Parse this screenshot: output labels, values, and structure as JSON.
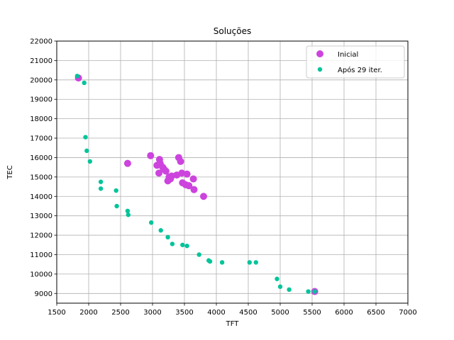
{
  "chart_data": {
    "type": "scatter",
    "title": "Soluções",
    "xlabel": "TFT",
    "ylabel": "TEC",
    "xlim": [
      1500,
      7000
    ],
    "ylim": [
      8500,
      22000
    ],
    "xticks": [
      1500,
      2000,
      2500,
      3000,
      3500,
      4000,
      4500,
      5000,
      5500,
      6000,
      6500,
      7000
    ],
    "yticks": [
      9000,
      10000,
      11000,
      12000,
      13000,
      14000,
      15000,
      16000,
      17000,
      18000,
      19000,
      20000,
      21000,
      22000
    ],
    "grid": true,
    "legend_position": "top-right",
    "series": [
      {
        "name": "Inicial",
        "color": "#cc44dd",
        "marker_size": "large",
        "points": [
          [
            1840,
            20100
          ],
          [
            2610,
            15700
          ],
          [
            2970,
            16100
          ],
          [
            3070,
            15600
          ],
          [
            3110,
            15900
          ],
          [
            3120,
            15700
          ],
          [
            3100,
            15200
          ],
          [
            3160,
            15500
          ],
          [
            3180,
            15400
          ],
          [
            3210,
            15300
          ],
          [
            3240,
            14800
          ],
          [
            3260,
            15000
          ],
          [
            3280,
            14900
          ],
          [
            3300,
            15050
          ],
          [
            3380,
            15100
          ],
          [
            3410,
            16000
          ],
          [
            3440,
            15800
          ],
          [
            3460,
            15200
          ],
          [
            3470,
            14700
          ],
          [
            3520,
            14600
          ],
          [
            3540,
            15150
          ],
          [
            3570,
            14550
          ],
          [
            3640,
            14900
          ],
          [
            3650,
            14350
          ],
          [
            3800,
            14000
          ],
          [
            5540,
            9100
          ]
        ]
      },
      {
        "name": "Após 29 iter.",
        "color": "#00c49a",
        "marker_size": "small",
        "points": [
          [
            1820,
            20200
          ],
          [
            1930,
            19850
          ],
          [
            1950,
            17050
          ],
          [
            1970,
            16350
          ],
          [
            2020,
            15800
          ],
          [
            2190,
            14750
          ],
          [
            2190,
            14400
          ],
          [
            2430,
            14300
          ],
          [
            2440,
            13500
          ],
          [
            2610,
            13250
          ],
          [
            2620,
            13050
          ],
          [
            2980,
            12650
          ],
          [
            3130,
            12250
          ],
          [
            3240,
            11900
          ],
          [
            3310,
            11550
          ],
          [
            3470,
            11500
          ],
          [
            3540,
            11450
          ],
          [
            3730,
            11000
          ],
          [
            3880,
            10700
          ],
          [
            3900,
            10650
          ],
          [
            4090,
            10600
          ],
          [
            4520,
            10600
          ],
          [
            4620,
            10600
          ],
          [
            4950,
            9750
          ],
          [
            5000,
            9350
          ],
          [
            5140,
            9200
          ],
          [
            5440,
            9100
          ],
          [
            5540,
            9100
          ]
        ]
      }
    ]
  }
}
